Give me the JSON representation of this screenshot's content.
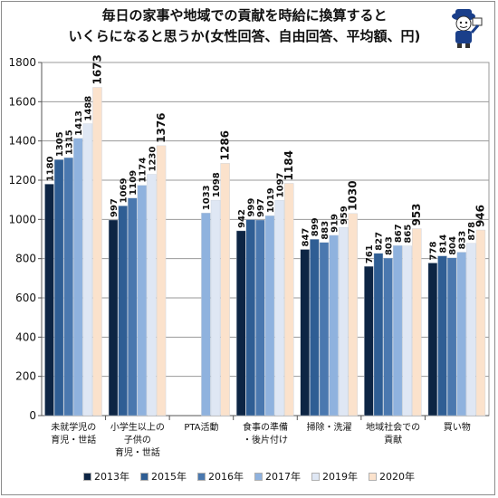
{
  "title_line1": "毎日の家事や地域での貢献を時給に換算すると",
  "title_line2": "いくらになると思うか(女性回答、自由回答、平均額、円)",
  "colors": [
    "#0d2544",
    "#2f5e94",
    "#4a78af",
    "#8fb2de",
    "#dfe7f4",
    "#fbe2cc"
  ],
  "chart_data": {
    "type": "bar",
    "title": "毎日の家事や地域での貢献を時給に換算すると いくらになると思うか(女性回答、自由回答、平均額、円)",
    "ylim": [
      0,
      1800
    ],
    "yticks": [
      0,
      200,
      400,
      600,
      800,
      1000,
      1200,
      1400,
      1600,
      1800
    ],
    "grid": true,
    "legend_position": "bottom",
    "categories": [
      [
        "未就学児の",
        "育児・世話"
      ],
      [
        "小学生以上の",
        "子供の",
        "育児・世話"
      ],
      [
        "PTA活動"
      ],
      [
        "食事の準備",
        "・後片付け"
      ],
      [
        "掃除・洗濯"
      ],
      [
        "地域社会での",
        "貢献"
      ],
      [
        "買い物"
      ]
    ],
    "series": [
      {
        "name": "2013年",
        "values": [
          1180,
          997,
          null,
          942,
          847,
          761,
          778
        ]
      },
      {
        "name": "2015年",
        "values": [
          1305,
          1069,
          null,
          999,
          899,
          827,
          814
        ]
      },
      {
        "name": "2016年",
        "values": [
          1315,
          1109,
          null,
          997,
          883,
          803,
          804
        ]
      },
      {
        "name": "2017年",
        "values": [
          1413,
          1174,
          1033,
          1019,
          919,
          867,
          833
        ]
      },
      {
        "name": "2019年",
        "values": [
          1488,
          1230,
          1098,
          1097,
          959,
          865,
          878
        ]
      },
      {
        "name": "2020年",
        "values": [
          1673,
          1376,
          1286,
          1184,
          1030,
          953,
          946
        ]
      }
    ]
  }
}
